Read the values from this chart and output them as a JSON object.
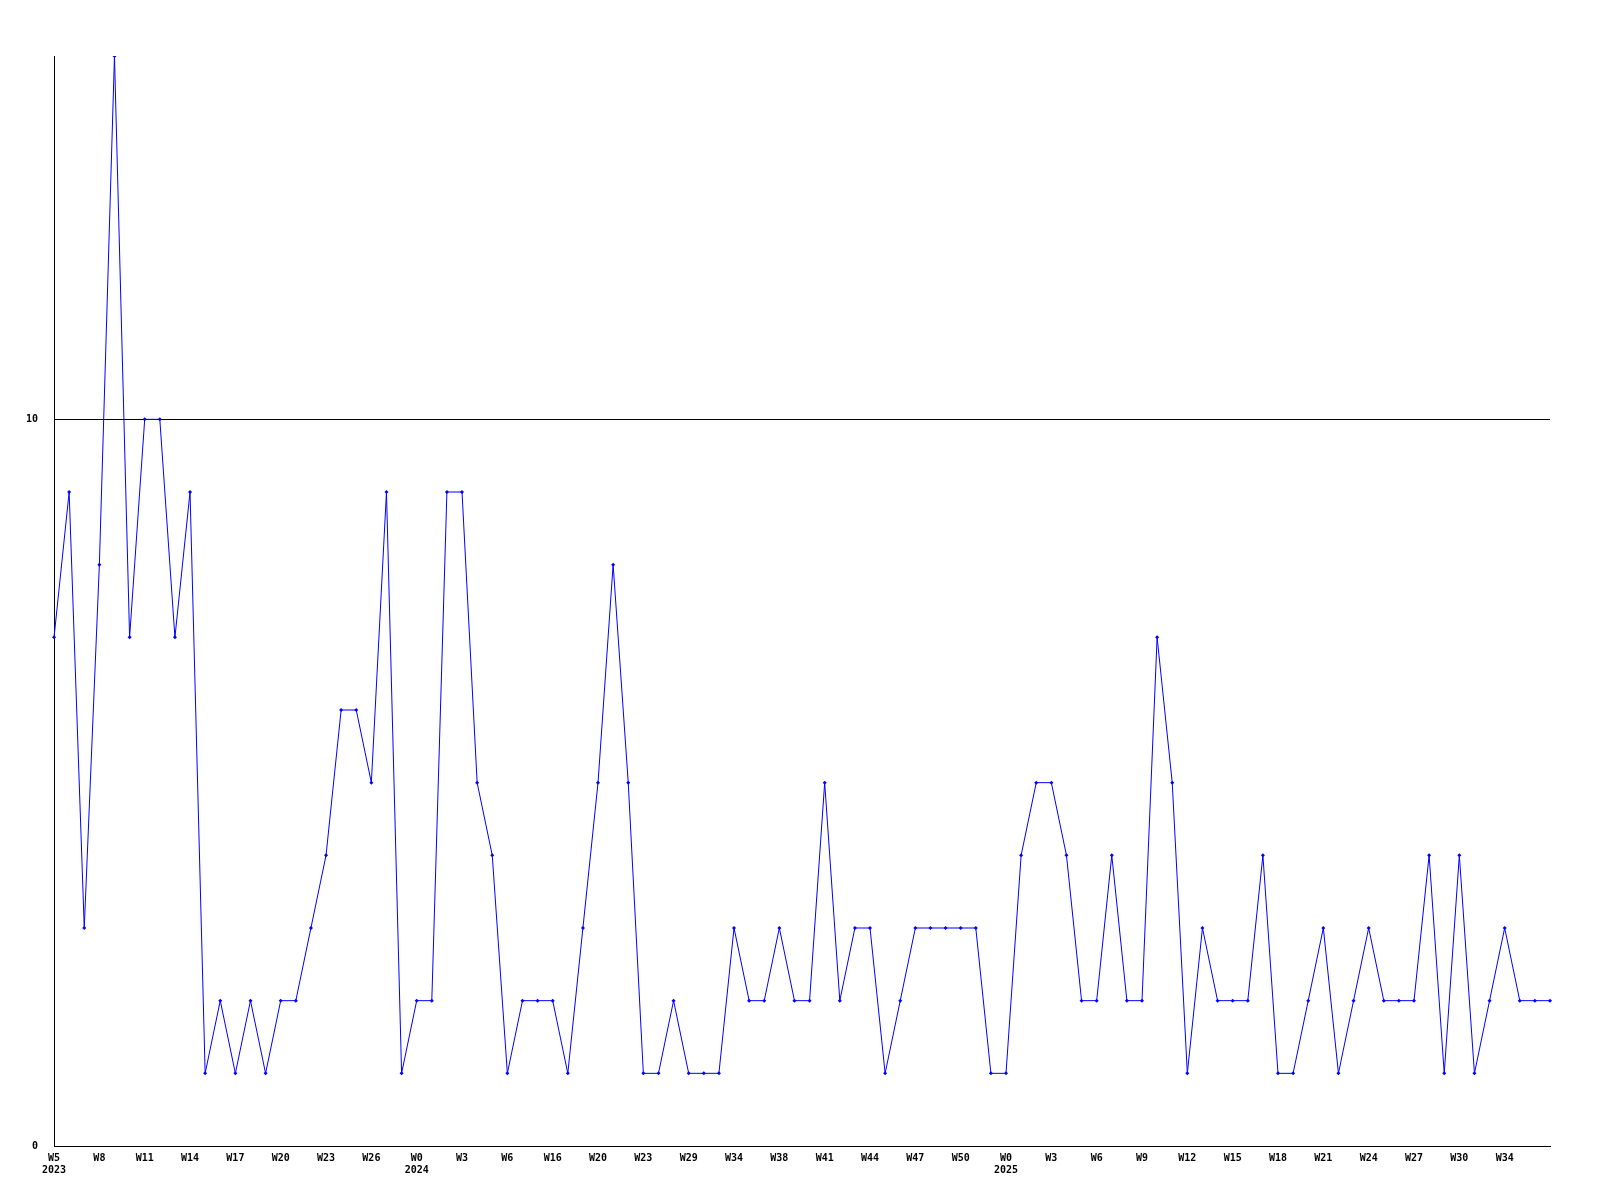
{
  "chart_data": {
    "type": "line",
    "categories": [
      "W5\n2023",
      null,
      null,
      "W8",
      null,
      null,
      "W11",
      null,
      null,
      "W14",
      null,
      null,
      "W17",
      null,
      null,
      "W20",
      null,
      null,
      "W23",
      null,
      null,
      "W26",
      null,
      null,
      "W0\n2024",
      null,
      null,
      "W3",
      null,
      null,
      "W6",
      null,
      null,
      "W16",
      null,
      null,
      "W20",
      null,
      null,
      "W23",
      null,
      null,
      "W29",
      null,
      null,
      "W34",
      null,
      null,
      "W38",
      null,
      null,
      "W41",
      null,
      null,
      "W44",
      null,
      null,
      "W47",
      null,
      null,
      "W50",
      null,
      null,
      "W0\n2025",
      null,
      null,
      "W3",
      null,
      null,
      "W6",
      null,
      null,
      "W9",
      null,
      null,
      "W12",
      null,
      null,
      "W15",
      null,
      null,
      "W18",
      null,
      null,
      "W21",
      null,
      null,
      "W24",
      null,
      null,
      "W27",
      null,
      null,
      "W30",
      null,
      null,
      "W34",
      null,
      null,
      null
    ],
    "series": [
      {
        "color": "#0000ff",
        "values": [
          7,
          9,
          3,
          8,
          15,
          7,
          10,
          10,
          7,
          9,
          1,
          2,
          1,
          2,
          1,
          2,
          2,
          3,
          4,
          6,
          6,
          5,
          9,
          1,
          2,
          2,
          9,
          9,
          5,
          4,
          1,
          2,
          2,
          2,
          1,
          3,
          5,
          8,
          5,
          1,
          1,
          2,
          1,
          1,
          1,
          3,
          2,
          2,
          3,
          2,
          2,
          5,
          2,
          3,
          3,
          1,
          2,
          3,
          3,
          3,
          3,
          3,
          1,
          1,
          4,
          5,
          5,
          4,
          2,
          2,
          4,
          2,
          2,
          7,
          5,
          1,
          3,
          2,
          2,
          2,
          4,
          1,
          1,
          2,
          3,
          1,
          2,
          3,
          2,
          2,
          2,
          4,
          1,
          4,
          1,
          2,
          3,
          2,
          2,
          2
        ]
      }
    ],
    "ylim": [
      0,
      15
    ],
    "yticks": [
      0,
      10
    ],
    "grid": "y",
    "legend": false,
    "marker": "diamond",
    "line_style": "solid"
  }
}
